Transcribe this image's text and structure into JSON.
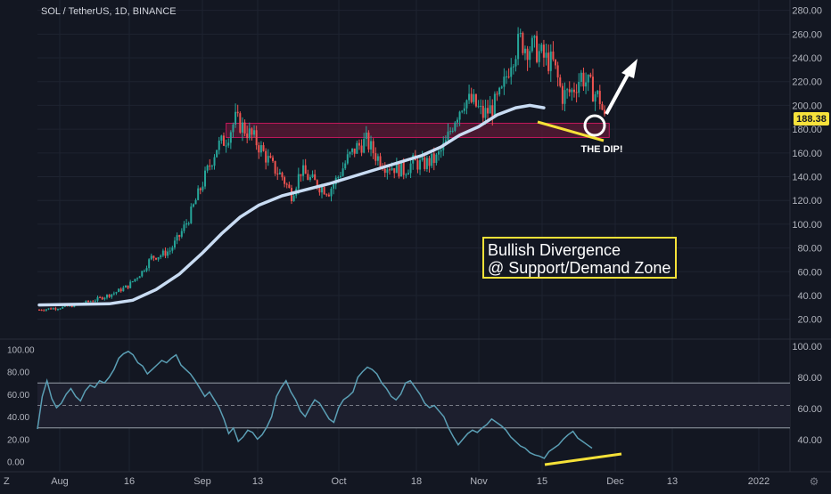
{
  "header": {
    "symbol_title": "SOL / TetherUS, 1D, BINANCE"
  },
  "colors": {
    "background": "#131722",
    "grid": "#1e2330",
    "up_candle": "#26a69a",
    "down_candle": "#ef5350",
    "moving_average": "#c9dcf3",
    "zone_fill": "#5c1a35",
    "zone_stroke": "#c2185b",
    "annotation_yellow": "#f5e138",
    "rsi_line": "#5b9fb5",
    "price_tag_bg": "#f7e23b"
  },
  "chart_data": [
    {
      "type": "candlestick",
      "panel": "price",
      "title": "SOL / TetherUS, 1D, BINANCE",
      "x_ticks": [
        "Aug",
        "16",
        "Sep",
        "13",
        "Oct",
        "18",
        "Nov",
        "15",
        "Dec",
        "13",
        "2022",
        "Z"
      ],
      "y_ticks": [
        20,
        40,
        60,
        80,
        100,
        120,
        140,
        160,
        180,
        200,
        220,
        240,
        260,
        280
      ],
      "ylim": [
        10,
        285
      ],
      "last_price": "188.38",
      "grid": true,
      "close_path": [
        [
          0,
          28
        ],
        [
          10,
          30
        ],
        [
          18,
          33
        ],
        [
          25,
          37
        ],
        [
          32,
          42
        ],
        [
          38,
          48
        ],
        [
          44,
          60
        ],
        [
          48,
          72
        ],
        [
          52,
          74
        ],
        [
          56,
          78
        ],
        [
          60,
          90
        ],
        [
          64,
          105
        ],
        [
          68,
          125
        ],
        [
          72,
          145
        ],
        [
          76,
          165
        ],
        [
          80,
          172
        ],
        [
          84,
          188
        ],
        [
          88,
          180
        ],
        [
          92,
          172
        ],
        [
          96,
          160
        ],
        [
          100,
          148
        ],
        [
          104,
          140
        ],
        [
          108,
          125
        ],
        [
          112,
          145
        ],
        [
          116,
          138
        ],
        [
          120,
          132
        ],
        [
          124,
          128
        ],
        [
          128,
          140
        ],
        [
          132,
          155
        ],
        [
          136,
          165
        ],
        [
          140,
          170
        ],
        [
          144,
          158
        ],
        [
          148,
          150
        ],
        [
          152,
          148
        ],
        [
          156,
          145
        ],
        [
          160,
          152
        ],
        [
          164,
          150
        ],
        [
          170,
          155
        ],
        [
          174,
          168
        ],
        [
          178,
          190
        ],
        [
          182,
          205
        ],
        [
          186,
          202
        ],
        [
          190,
          192
        ],
        [
          194,
          198
        ],
        [
          198,
          210
        ],
        [
          202,
          240
        ],
        [
          206,
          255
        ],
        [
          208,
          250
        ],
        [
          212,
          248
        ],
        [
          216,
          240
        ],
        [
          220,
          235
        ],
        [
          222,
          222
        ],
        [
          224,
          208
        ],
        [
          228,
          212
        ],
        [
          232,
          225
        ],
        [
          236,
          215
        ],
        [
          240,
          205
        ],
        [
          242,
          188
        ]
      ],
      "moving_average": [
        [
          0,
          32
        ],
        [
          30,
          33
        ],
        [
          40,
          36
        ],
        [
          50,
          45
        ],
        [
          60,
          58
        ],
        [
          70,
          76
        ],
        [
          78,
          92
        ],
        [
          86,
          106
        ],
        [
          94,
          116
        ],
        [
          104,
          124
        ],
        [
          114,
          129
        ],
        [
          124,
          134
        ],
        [
          134,
          140
        ],
        [
          144,
          146
        ],
        [
          154,
          152
        ],
        [
          164,
          158
        ],
        [
          172,
          165
        ],
        [
          180,
          175
        ],
        [
          188,
          182
        ],
        [
          196,
          192
        ],
        [
          204,
          198
        ],
        [
          210,
          200
        ],
        [
          216,
          198
        ]
      ],
      "zone": {
        "low": 173,
        "high": 185,
        "from_day": 80,
        "to_day": 244,
        "label": ""
      },
      "annotations": {
        "dip_label": "THE DIP!",
        "divergence_box_line1": "Bullish Divergence",
        "divergence_box_line2": "@ Support/Demand Zone"
      }
    },
    {
      "type": "line",
      "panel": "rsi",
      "y_ticks_left": [
        0,
        20,
        40,
        60,
        80,
        100
      ],
      "y_ticks_right": [
        40,
        60,
        80,
        100
      ],
      "ylim": [
        -5,
        105
      ],
      "bands": {
        "upper": 70,
        "middle": 50,
        "lower": 30
      },
      "values": [
        29,
        58,
        72,
        56,
        48,
        52,
        60,
        65,
        58,
        54,
        63,
        68,
        66,
        72,
        70,
        75,
        82,
        92,
        96,
        98,
        95,
        88,
        85,
        78,
        82,
        86,
        90,
        88,
        92,
        95,
        86,
        82,
        78,
        72,
        65,
        58,
        62,
        55,
        48,
        38,
        25,
        30,
        18,
        22,
        28,
        26,
        20,
        24,
        31,
        40,
        58,
        66,
        72,
        62,
        55,
        45,
        40,
        48,
        55,
        52,
        45,
        38,
        35,
        48,
        55,
        58,
        62,
        75,
        80,
        84,
        82,
        78,
        70,
        65,
        58,
        55,
        60,
        70,
        72,
        66,
        60,
        52,
        48,
        50,
        45,
        40,
        30,
        22,
        15,
        20,
        25,
        28,
        26,
        30,
        33,
        38,
        35,
        32,
        28,
        22,
        18,
        14,
        12,
        8,
        6,
        5,
        3,
        9,
        12,
        15,
        20,
        24,
        27,
        21,
        18,
        15,
        12
      ]
    }
  ]
}
